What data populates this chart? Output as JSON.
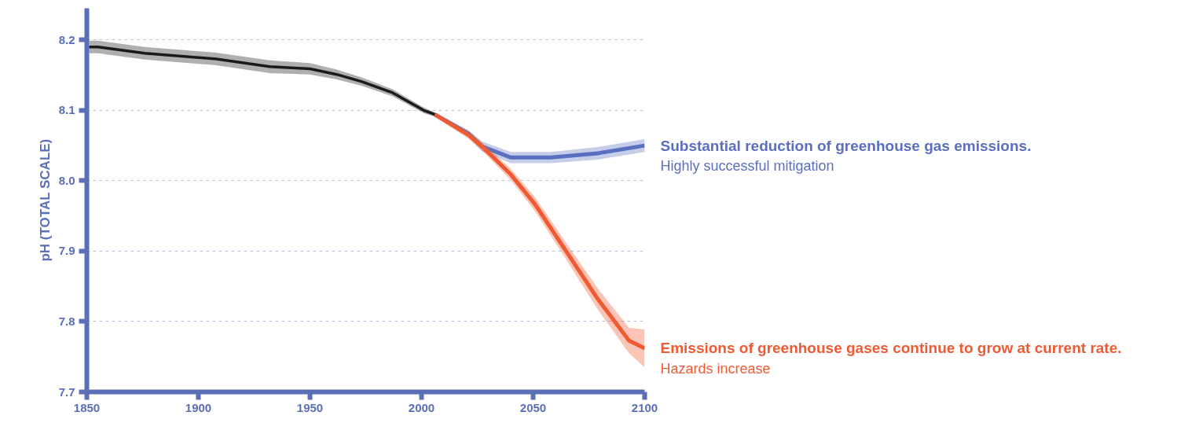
{
  "chart_data": {
    "type": "line",
    "ylabel": "pH (TOTAL SCALE)",
    "xlim": [
      1850,
      2100
    ],
    "ylim": [
      7.7,
      8.245
    ],
    "xticks": [
      1850,
      1900,
      1950,
      2000,
      2050,
      2100
    ],
    "yticks": [
      7.7,
      7.8,
      7.9,
      {
        "value": 8,
        "label": "8.0"
      },
      8.1,
      8.2
    ],
    "grid": "y",
    "series": [
      {
        "color": "#1a1a1a",
        "x": [
          1851,
          1855,
          1876,
          1908,
          1932,
          1950,
          1962,
          1973,
          1987,
          2001,
          2006
        ],
        "values": [
          8.19,
          8.19,
          8.181,
          8.173,
          8.162,
          8.159,
          8.151,
          8.141,
          8.125,
          8.1,
          8.094
        ],
        "lower": [
          8.181,
          8.181,
          8.172,
          8.164,
          8.153,
          8.151,
          8.144,
          8.135,
          8.12,
          8.096,
          8.091
        ],
        "upper": [
          8.199,
          8.199,
          8.19,
          8.182,
          8.171,
          8.167,
          8.158,
          8.147,
          8.13,
          8.104,
          8.097
        ]
      },
      {
        "name": "Substantial reduction of greenhouse gas emissions.",
        "color": "#5a6fbf",
        "x": [
          2006,
          2021,
          2027,
          2040,
          2058,
          2079,
          2100
        ],
        "values": [
          8.094,
          8.067,
          8.049,
          8.033,
          8.033,
          8.039,
          8.05
        ],
        "lower": [
          8.091,
          8.062,
          8.042,
          8.025,
          8.025,
          8.03,
          8.041
        ],
        "upper": [
          8.097,
          8.072,
          8.056,
          8.041,
          8.041,
          8.048,
          8.059
        ]
      },
      {
        "name": "Emissions of greenhouse gases continue to grow at current rate.",
        "color": "#f05a32",
        "x": [
          2006,
          2021,
          2027,
          2040,
          2051,
          2065,
          2079,
          2093,
          2100
        ],
        "values": [
          8.094,
          8.065,
          8.049,
          8.009,
          7.966,
          7.899,
          7.832,
          7.773,
          7.762
        ],
        "lower": [
          8.091,
          8.06,
          8.043,
          8.001,
          7.956,
          7.887,
          7.817,
          7.755,
          7.735
        ],
        "upper": [
          8.097,
          8.07,
          8.055,
          8.017,
          7.976,
          7.911,
          7.847,
          7.791,
          7.789
        ]
      }
    ],
    "annotations": [
      {
        "text": "Highly successful mitigation",
        "x": 2100,
        "y": 8.05
      },
      {
        "text": "Hazards increase",
        "x": 2100,
        "y": 7.762
      }
    ]
  }
}
